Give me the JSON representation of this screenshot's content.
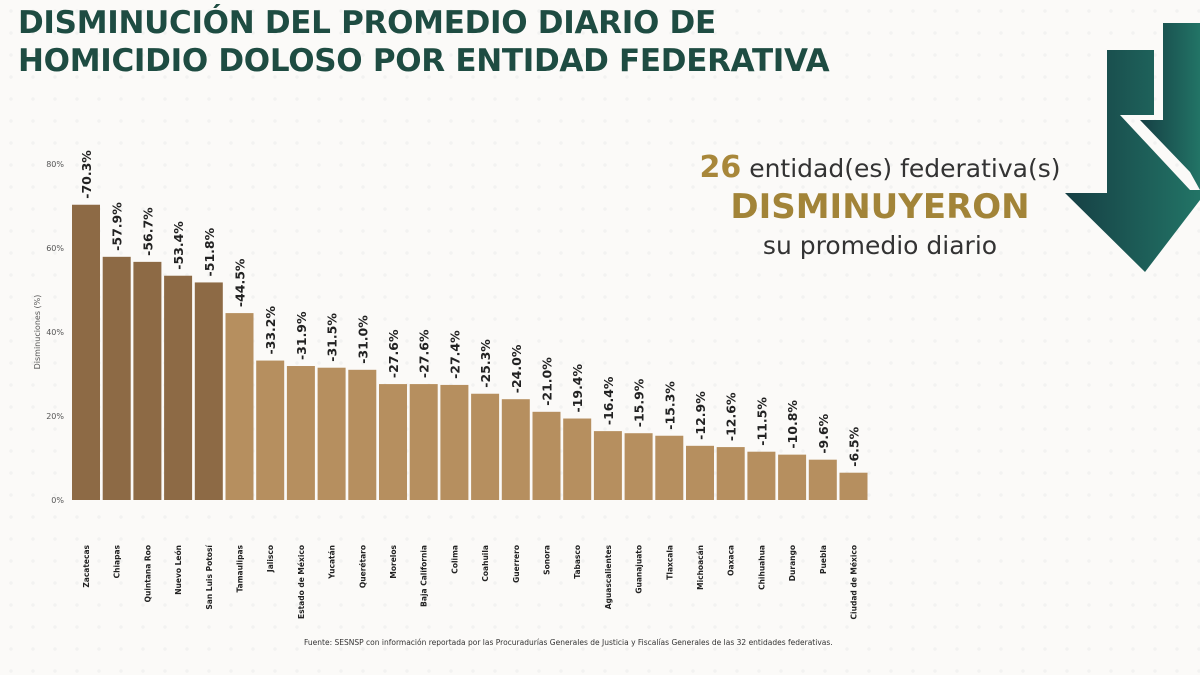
{
  "title_line1": "DISMINUCIÓN DEL PROMEDIO DIARIO DE",
  "title_line2": "HOMICIDIO DOLOSO POR ENTIDAD FEDERATIVA",
  "callout": {
    "count": "26",
    "line1": "entidad(es) federativa(s)",
    "line2": "DISMINUYERON",
    "line3": "su promedio diario"
  },
  "source": "Fuente: SESNSP con información reportada por las Procuradurías Generales de Justicia y Fiscalías Generales de las 32 entidades federativas.",
  "icon": "down-arrow-icon",
  "colors": {
    "title": "#1e4c42",
    "accent_gold": "#a8873a",
    "bar_dark": "#8d6a45",
    "bar_light": "#b68f5f",
    "arrow": "#1d5a55"
  },
  "chart_data": {
    "type": "bar",
    "ylabel": "Disminuciones (%)",
    "ylim": [
      0,
      80
    ],
    "yticks": [
      "0%",
      "20%",
      "40%",
      "60%",
      "80%"
    ],
    "grid": false,
    "categories": [
      "Zacatecas",
      "Chiapas",
      "Quintana Roo",
      "Nuevo León",
      "San Luis Potosí",
      "Tamaulipas",
      "Jalisco",
      "Estado de México",
      "Yucatán",
      "Querétaro",
      "Morelos",
      "Baja California",
      "Colima",
      "Coahuila",
      "Guerrero",
      "Sonora",
      "Tabasco",
      "Aguascalientes",
      "Guanajuato",
      "Tlaxcala",
      "Michoacán",
      "Oaxaca",
      "Chihuahua",
      "Durango",
      "Puebla",
      "Ciudad de México"
    ],
    "values": [
      70.3,
      57.9,
      56.7,
      53.4,
      51.8,
      44.5,
      33.2,
      31.9,
      31.5,
      31.0,
      27.6,
      27.6,
      27.4,
      25.3,
      24.0,
      21.0,
      19.4,
      16.4,
      15.9,
      15.3,
      12.9,
      12.6,
      11.5,
      10.8,
      9.6,
      6.5
    ],
    "labels": [
      "-70.3%",
      "-57.9%",
      "-56.7%",
      "-53.4%",
      "-51.8%",
      "-44.5%",
      "-33.2%",
      "-31.9%",
      "-31.5%",
      "-31.0%",
      "-27.6%",
      "-27.6%",
      "-27.4%",
      "-25.3%",
      "-24.0%",
      "-21.0%",
      "-19.4%",
      "-16.4%",
      "-15.9%",
      "-15.3%",
      "-12.9%",
      "-12.6%",
      "-11.5%",
      "-10.8%",
      "-9.6%",
      "-6.5%"
    ]
  }
}
